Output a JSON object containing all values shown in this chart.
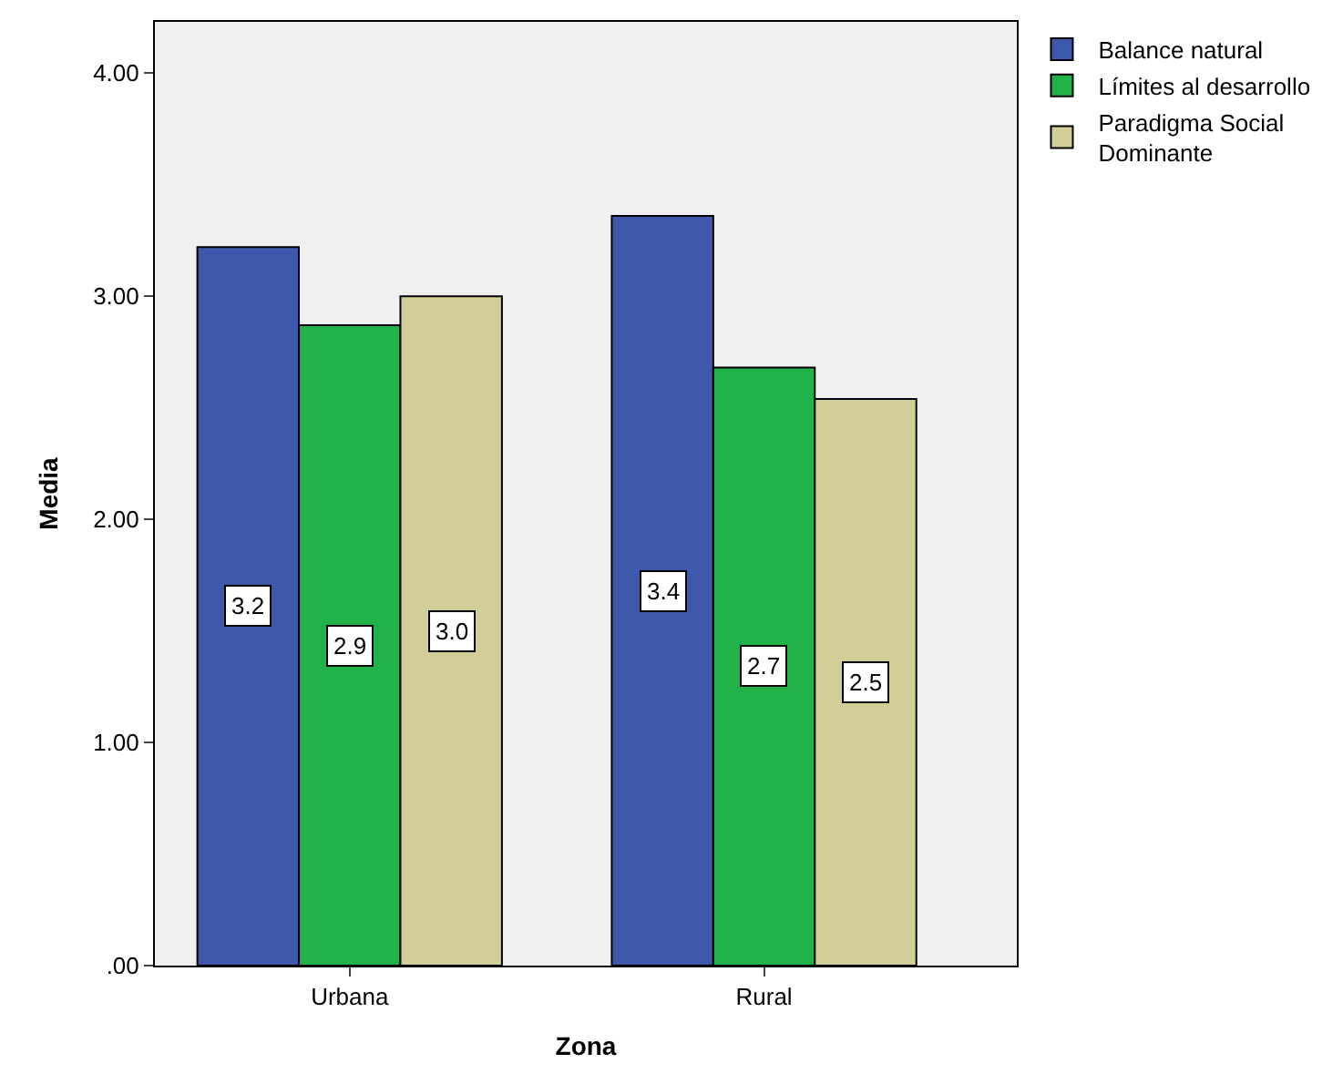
{
  "chart_data": {
    "type": "bar",
    "xlabel": "Zona",
    "ylabel": "Media",
    "categories": [
      "Urbana",
      "Rural"
    ],
    "series": [
      {
        "name": "Balance natural",
        "color": "#3e58ac",
        "values": [
          3.22,
          3.36
        ],
        "value_labels": [
          "3.2",
          "3.4"
        ]
      },
      {
        "name": "Límites al desarrollo",
        "color": "#21b24a",
        "values": [
          2.87,
          2.68
        ],
        "value_labels": [
          "2.9",
          "2.7"
        ]
      },
      {
        "name": "Paradigma Social\nDominante",
        "color": "#d3ce97",
        "values": [
          3.0,
          2.54
        ],
        "value_labels": [
          "3.0",
          "2.5"
        ]
      }
    ],
    "ylim": [
      0,
      4.23
    ],
    "yticks": [
      {
        "value": 0,
        "label": ".00"
      },
      {
        "value": 1,
        "label": "1.00"
      },
      {
        "value": 2,
        "label": "2.00"
      },
      {
        "value": 3,
        "label": "3.00"
      },
      {
        "value": 4,
        "label": "4.00"
      }
    ],
    "grid": false,
    "legend": "top right"
  }
}
